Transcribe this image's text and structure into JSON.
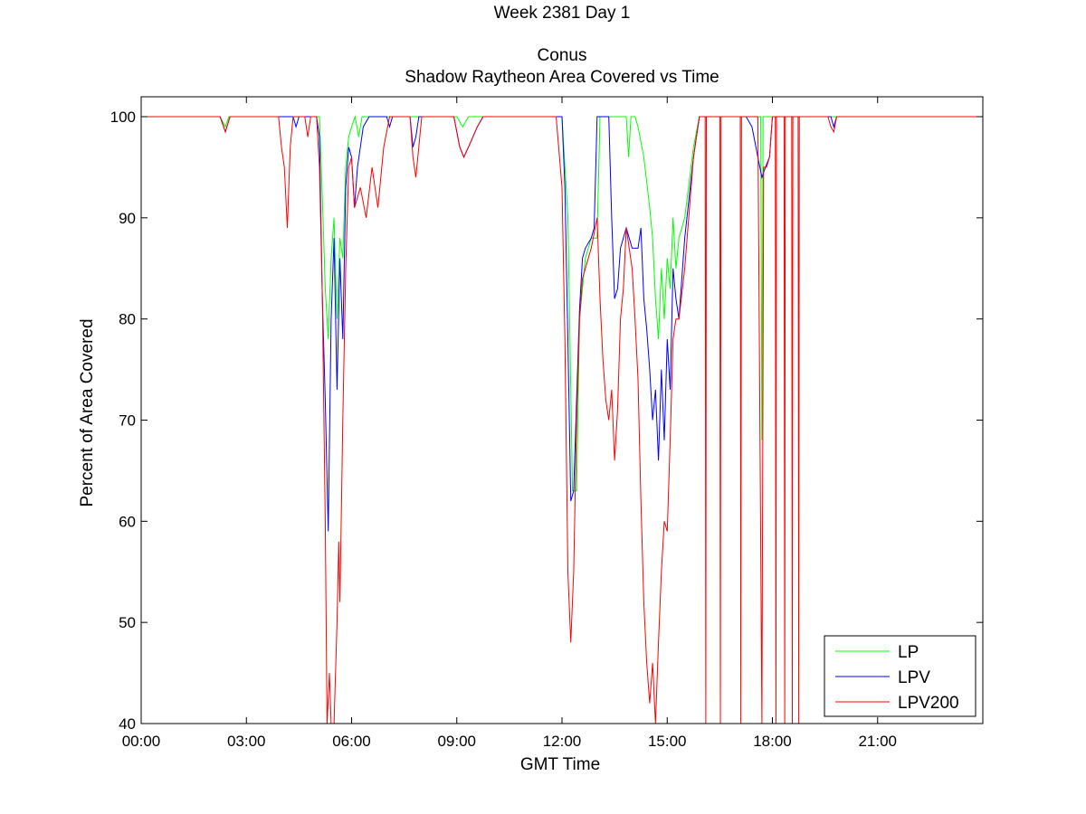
{
  "chart_data": {
    "type": "line",
    "title": [
      "Week 2381 Day 1",
      "",
      "Conus",
      "Shadow Raytheon Area Covered vs Time"
    ],
    "xlabel": "GMT Time",
    "ylabel": "Percent of Area Covered",
    "xlim": [
      "00:00",
      "24:00"
    ],
    "ylim": [
      40,
      100
    ],
    "x_ticks": [
      "00:00",
      "03:00",
      "06:00",
      "09:00",
      "12:00",
      "15:00",
      "18:00",
      "21:00"
    ],
    "y_ticks": [
      40,
      50,
      60,
      70,
      80,
      90,
      100
    ],
    "legend_position": "bottom-right",
    "grid": false,
    "series": [
      {
        "name": "LP",
        "color": "#00ff00",
        "points": [
          [
            "00:00",
            100
          ],
          [
            "02:15",
            100
          ],
          [
            "02:24",
            99
          ],
          [
            "02:30",
            100
          ],
          [
            "04:00",
            100
          ],
          [
            "05:05",
            100
          ],
          [
            "05:10",
            92
          ],
          [
            "05:15",
            83
          ],
          [
            "05:20",
            78
          ],
          [
            "05:25",
            86
          ],
          [
            "05:30",
            90
          ],
          [
            "05:35",
            80
          ],
          [
            "05:40",
            88
          ],
          [
            "05:45",
            86
          ],
          [
            "05:50",
            95
          ],
          [
            "05:55",
            98
          ],
          [
            "06:00",
            99
          ],
          [
            "06:06",
            100
          ],
          [
            "06:12",
            98
          ],
          [
            "06:18",
            100
          ],
          [
            "09:00",
            100
          ],
          [
            "09:10",
            99
          ],
          [
            "09:20",
            100
          ],
          [
            "12:00",
            100
          ],
          [
            "12:10",
            90
          ],
          [
            "12:18",
            63
          ],
          [
            "12:25",
            63
          ],
          [
            "12:30",
            80
          ],
          [
            "12:40",
            86
          ],
          [
            "12:50",
            88
          ],
          [
            "13:00",
            88
          ],
          [
            "13:05",
            100
          ],
          [
            "13:50",
            100
          ],
          [
            "13:54",
            96
          ],
          [
            "13:58",
            100
          ],
          [
            "14:05",
            100
          ],
          [
            "14:10",
            99
          ],
          [
            "14:20",
            96
          ],
          [
            "14:30",
            91
          ],
          [
            "14:35",
            88
          ],
          [
            "14:40",
            82
          ],
          [
            "14:45",
            78
          ],
          [
            "14:50",
            85
          ],
          [
            "14:55",
            80
          ],
          [
            "15:00",
            86
          ],
          [
            "15:05",
            83
          ],
          [
            "15:10",
            90
          ],
          [
            "15:15",
            85
          ],
          [
            "15:20",
            88
          ],
          [
            "15:30",
            90
          ],
          [
            "15:45",
            97
          ],
          [
            "15:55",
            100
          ],
          [
            "17:40",
            100
          ],
          [
            "17:42",
            68
          ],
          [
            "17:44",
            100
          ],
          [
            "24:00",
            100
          ]
        ]
      },
      {
        "name": "LPV",
        "color": "#0000ff",
        "points": [
          [
            "00:00",
            100
          ],
          [
            "02:15",
            100
          ],
          [
            "02:24",
            98.5
          ],
          [
            "02:32",
            100
          ],
          [
            "04:00",
            100
          ],
          [
            "04:20",
            100
          ],
          [
            "04:25",
            99
          ],
          [
            "04:30",
            100
          ],
          [
            "05:00",
            100
          ],
          [
            "05:05",
            98
          ],
          [
            "05:10",
            82
          ],
          [
            "05:15",
            72
          ],
          [
            "05:20",
            59
          ],
          [
            "05:25",
            80
          ],
          [
            "05:30",
            88
          ],
          [
            "05:35",
            73
          ],
          [
            "05:40",
            86
          ],
          [
            "05:45",
            78
          ],
          [
            "05:50",
            93
          ],
          [
            "05:55",
            97
          ],
          [
            "06:00",
            96
          ],
          [
            "06:05",
            91
          ],
          [
            "06:10",
            95
          ],
          [
            "06:20",
            99
          ],
          [
            "06:30",
            100
          ],
          [
            "07:00",
            100
          ],
          [
            "07:05",
            99
          ],
          [
            "07:10",
            100
          ],
          [
            "07:40",
            100
          ],
          [
            "07:45",
            97
          ],
          [
            "07:50",
            98
          ],
          [
            "07:55",
            100
          ],
          [
            "08:55",
            100
          ],
          [
            "09:05",
            97
          ],
          [
            "09:12",
            96
          ],
          [
            "09:20",
            97
          ],
          [
            "09:35",
            99
          ],
          [
            "09:45",
            100
          ],
          [
            "12:00",
            100
          ],
          [
            "12:05",
            93
          ],
          [
            "12:10",
            78
          ],
          [
            "12:15",
            62
          ],
          [
            "12:20",
            63
          ],
          [
            "12:25",
            72
          ],
          [
            "12:30",
            81
          ],
          [
            "12:35",
            86
          ],
          [
            "12:40",
            87
          ],
          [
            "12:50",
            88
          ],
          [
            "12:55",
            89
          ],
          [
            "13:00",
            100
          ],
          [
            "13:20",
            100
          ],
          [
            "13:25",
            90
          ],
          [
            "13:30",
            82
          ],
          [
            "13:35",
            83
          ],
          [
            "13:40",
            87
          ],
          [
            "13:50",
            89
          ],
          [
            "14:00",
            87
          ],
          [
            "14:10",
            87
          ],
          [
            "14:15",
            89
          ],
          [
            "14:20",
            82
          ],
          [
            "14:25",
            79
          ],
          [
            "14:30",
            75
          ],
          [
            "14:35",
            70
          ],
          [
            "14:40",
            73
          ],
          [
            "14:45",
            66
          ],
          [
            "14:50",
            75
          ],
          [
            "14:55",
            68
          ],
          [
            "15:00",
            78
          ],
          [
            "15:05",
            73
          ],
          [
            "15:10",
            85
          ],
          [
            "15:15",
            82
          ],
          [
            "15:20",
            80
          ],
          [
            "15:30",
            88
          ],
          [
            "15:45",
            96
          ],
          [
            "15:55",
            100
          ],
          [
            "17:15",
            100
          ],
          [
            "17:25",
            99
          ],
          [
            "17:35",
            96
          ],
          [
            "17:42",
            94
          ],
          [
            "17:48",
            95
          ],
          [
            "17:55",
            96
          ],
          [
            "18:00",
            100
          ],
          [
            "19:40",
            100
          ],
          [
            "19:45",
            99
          ],
          [
            "19:50",
            100
          ],
          [
            "24:00",
            100
          ]
        ]
      },
      {
        "name": "LPV200",
        "color": "#ff0000",
        "points": [
          [
            "00:00",
            100
          ],
          [
            "02:15",
            100
          ],
          [
            "02:24",
            98.5
          ],
          [
            "02:32",
            100
          ],
          [
            "03:55",
            100
          ],
          [
            "04:00",
            97
          ],
          [
            "04:05",
            95
          ],
          [
            "04:10",
            89
          ],
          [
            "04:15",
            97
          ],
          [
            "04:20",
            100
          ],
          [
            "04:40",
            100
          ],
          [
            "04:45",
            98
          ],
          [
            "04:50",
            100
          ],
          [
            "05:00",
            100
          ],
          [
            "05:05",
            95
          ],
          [
            "05:10",
            82
          ],
          [
            "05:15",
            60
          ],
          [
            "05:18",
            40
          ],
          [
            "05:22",
            45
          ],
          [
            "05:25",
            40
          ],
          [
            "05:30",
            40
          ],
          [
            "05:35",
            50
          ],
          [
            "05:38",
            58
          ],
          [
            "05:40",
            52
          ],
          [
            "05:45",
            70
          ],
          [
            "05:50",
            85
          ],
          [
            "05:55",
            95
          ],
          [
            "06:00",
            96
          ],
          [
            "06:05",
            91
          ],
          [
            "06:15",
            93
          ],
          [
            "06:25",
            90
          ],
          [
            "06:35",
            95
          ],
          [
            "06:45",
            91
          ],
          [
            "06:55",
            97
          ],
          [
            "07:05",
            100
          ],
          [
            "07:40",
            100
          ],
          [
            "07:45",
            96
          ],
          [
            "07:50",
            94
          ],
          [
            "07:55",
            97
          ],
          [
            "08:00",
            100
          ],
          [
            "08:55",
            100
          ],
          [
            "09:05",
            97
          ],
          [
            "09:12",
            96
          ],
          [
            "09:20",
            97
          ],
          [
            "09:35",
            99
          ],
          [
            "09:45",
            100
          ],
          [
            "11:50",
            100
          ],
          [
            "12:00",
            93
          ],
          [
            "12:05",
            78
          ],
          [
            "12:10",
            55
          ],
          [
            "12:15",
            48
          ],
          [
            "12:20",
            55
          ],
          [
            "12:25",
            70
          ],
          [
            "12:30",
            80
          ],
          [
            "12:35",
            84
          ],
          [
            "12:40",
            85
          ],
          [
            "12:50",
            87
          ],
          [
            "13:00",
            90
          ],
          [
            "13:05",
            82
          ],
          [
            "13:10",
            76
          ],
          [
            "13:15",
            72
          ],
          [
            "13:20",
            70
          ],
          [
            "13:25",
            73
          ],
          [
            "13:30",
            66
          ],
          [
            "13:35",
            71
          ],
          [
            "13:40",
            80
          ],
          [
            "13:45",
            83
          ],
          [
            "13:50",
            89
          ],
          [
            "14:00",
            85
          ],
          [
            "14:05",
            80
          ],
          [
            "14:10",
            74
          ],
          [
            "14:15",
            62
          ],
          [
            "14:20",
            52
          ],
          [
            "14:25",
            46
          ],
          [
            "14:30",
            42
          ],
          [
            "14:35",
            46
          ],
          [
            "14:40",
            40
          ],
          [
            "14:45",
            48
          ],
          [
            "14:50",
            55
          ],
          [
            "14:55",
            60
          ],
          [
            "15:00",
            59
          ],
          [
            "15:05",
            68
          ],
          [
            "15:10",
            78
          ],
          [
            "15:15",
            80
          ],
          [
            "15:20",
            80
          ],
          [
            "15:30",
            85
          ],
          [
            "15:45",
            96
          ],
          [
            "15:55",
            100
          ],
          [
            "16:05",
            100
          ],
          [
            "16:06",
            40
          ],
          [
            "16:07",
            100
          ],
          [
            "16:30",
            100
          ],
          [
            "16:31",
            40
          ],
          [
            "16:32",
            100
          ],
          [
            "17:05",
            100
          ],
          [
            "17:06",
            40
          ],
          [
            "17:07",
            100
          ],
          [
            "17:35",
            100
          ],
          [
            "17:42",
            40
          ],
          [
            "17:45",
            95
          ],
          [
            "17:50",
            95
          ],
          [
            "17:55",
            96
          ],
          [
            "18:00",
            100
          ],
          [
            "18:05",
            100
          ],
          [
            "18:06",
            40
          ],
          [
            "18:07",
            100
          ],
          [
            "18:20",
            100
          ],
          [
            "18:21",
            40
          ],
          [
            "18:22",
            100
          ],
          [
            "18:33",
            100
          ],
          [
            "18:34",
            40
          ],
          [
            "18:35",
            100
          ],
          [
            "18:44",
            100
          ],
          [
            "18:45",
            40
          ],
          [
            "18:46",
            100
          ],
          [
            "19:35",
            100
          ],
          [
            "19:40",
            99
          ],
          [
            "19:45",
            98.5
          ],
          [
            "19:50",
            100
          ],
          [
            "24:00",
            100
          ]
        ]
      }
    ]
  }
}
